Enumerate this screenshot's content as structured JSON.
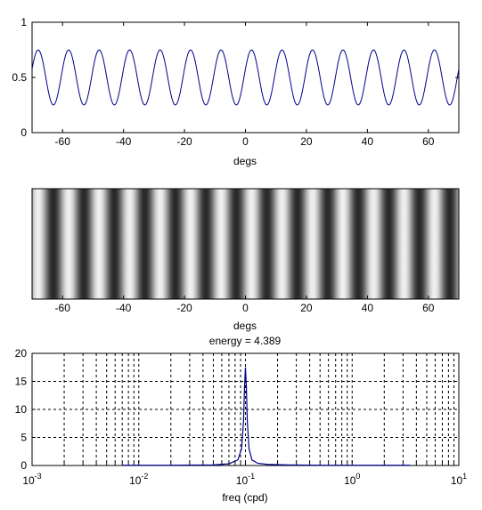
{
  "chart_data": [
    {
      "type": "line",
      "xlabel": "degs",
      "ylabel": "",
      "xlim": [
        -70,
        70
      ],
      "ylim": [
        0,
        1
      ],
      "xticks": [
        -60,
        -40,
        -20,
        0,
        20,
        40,
        60
      ],
      "yticks": [
        0,
        0.5,
        1
      ],
      "xtick_labels": [
        "-60",
        "-40",
        "-20",
        "0",
        "20",
        "40",
        "60"
      ],
      "ytick_labels": [
        "0",
        "0.5",
        "1"
      ],
      "grid": false,
      "line_color": "#00008b",
      "series": [
        {
          "function": "0.5 + 0.25*cos(2*pi*0.1*(x - 2))",
          "mean": 0.5,
          "amplitude": 0.25,
          "frequency_cpd": 0.1,
          "phase_deg": 2
        }
      ]
    },
    {
      "type": "heatmap",
      "xlabel": "degs",
      "xlim": [
        -70,
        70
      ],
      "xticks": [
        -60,
        -40,
        -20,
        0,
        20,
        40,
        60
      ],
      "xtick_labels": [
        "-60",
        "-40",
        "-20",
        "0",
        "20",
        "40",
        "60"
      ],
      "colormap": "gray",
      "pattern": "vertical sinusoidal grating",
      "frequency_cpd": 0.1,
      "mean": 0.5,
      "amplitude": 0.25
    },
    {
      "type": "line",
      "title": "energy = 4.389",
      "xlabel": "freq (cpd)",
      "xscale": "log",
      "xlim": [
        0.001,
        10
      ],
      "ylim": [
        0,
        20
      ],
      "yticks": [
        0,
        5,
        10,
        15,
        20
      ],
      "ytick_labels": [
        "0",
        "5",
        "10",
        "15",
        "20"
      ],
      "xtick_labels": [
        {
          "base": "10",
          "exp": "-3"
        },
        {
          "base": "10",
          "exp": "-2"
        },
        {
          "base": "10",
          "exp": "-1"
        },
        {
          "base": "10",
          "exp": "0"
        },
        {
          "base": "10",
          "exp": "1"
        }
      ],
      "grid": true,
      "line_color": "#00008b",
      "series": [
        {
          "x": [
            0.007,
            0.02,
            0.05,
            0.07,
            0.085,
            0.092,
            0.096,
            0.098,
            0.1,
            0.102,
            0.104,
            0.108,
            0.115,
            0.13,
            0.16,
            0.25,
            0.5,
            1,
            2,
            3.5
          ],
          "y": [
            0.05,
            0.05,
            0.1,
            0.3,
            1.0,
            3.0,
            8.0,
            14.0,
            17.5,
            14.0,
            8.0,
            3.0,
            1.0,
            0.4,
            0.2,
            0.1,
            0.05,
            0.05,
            0.05,
            0.05
          ]
        }
      ]
    }
  ]
}
